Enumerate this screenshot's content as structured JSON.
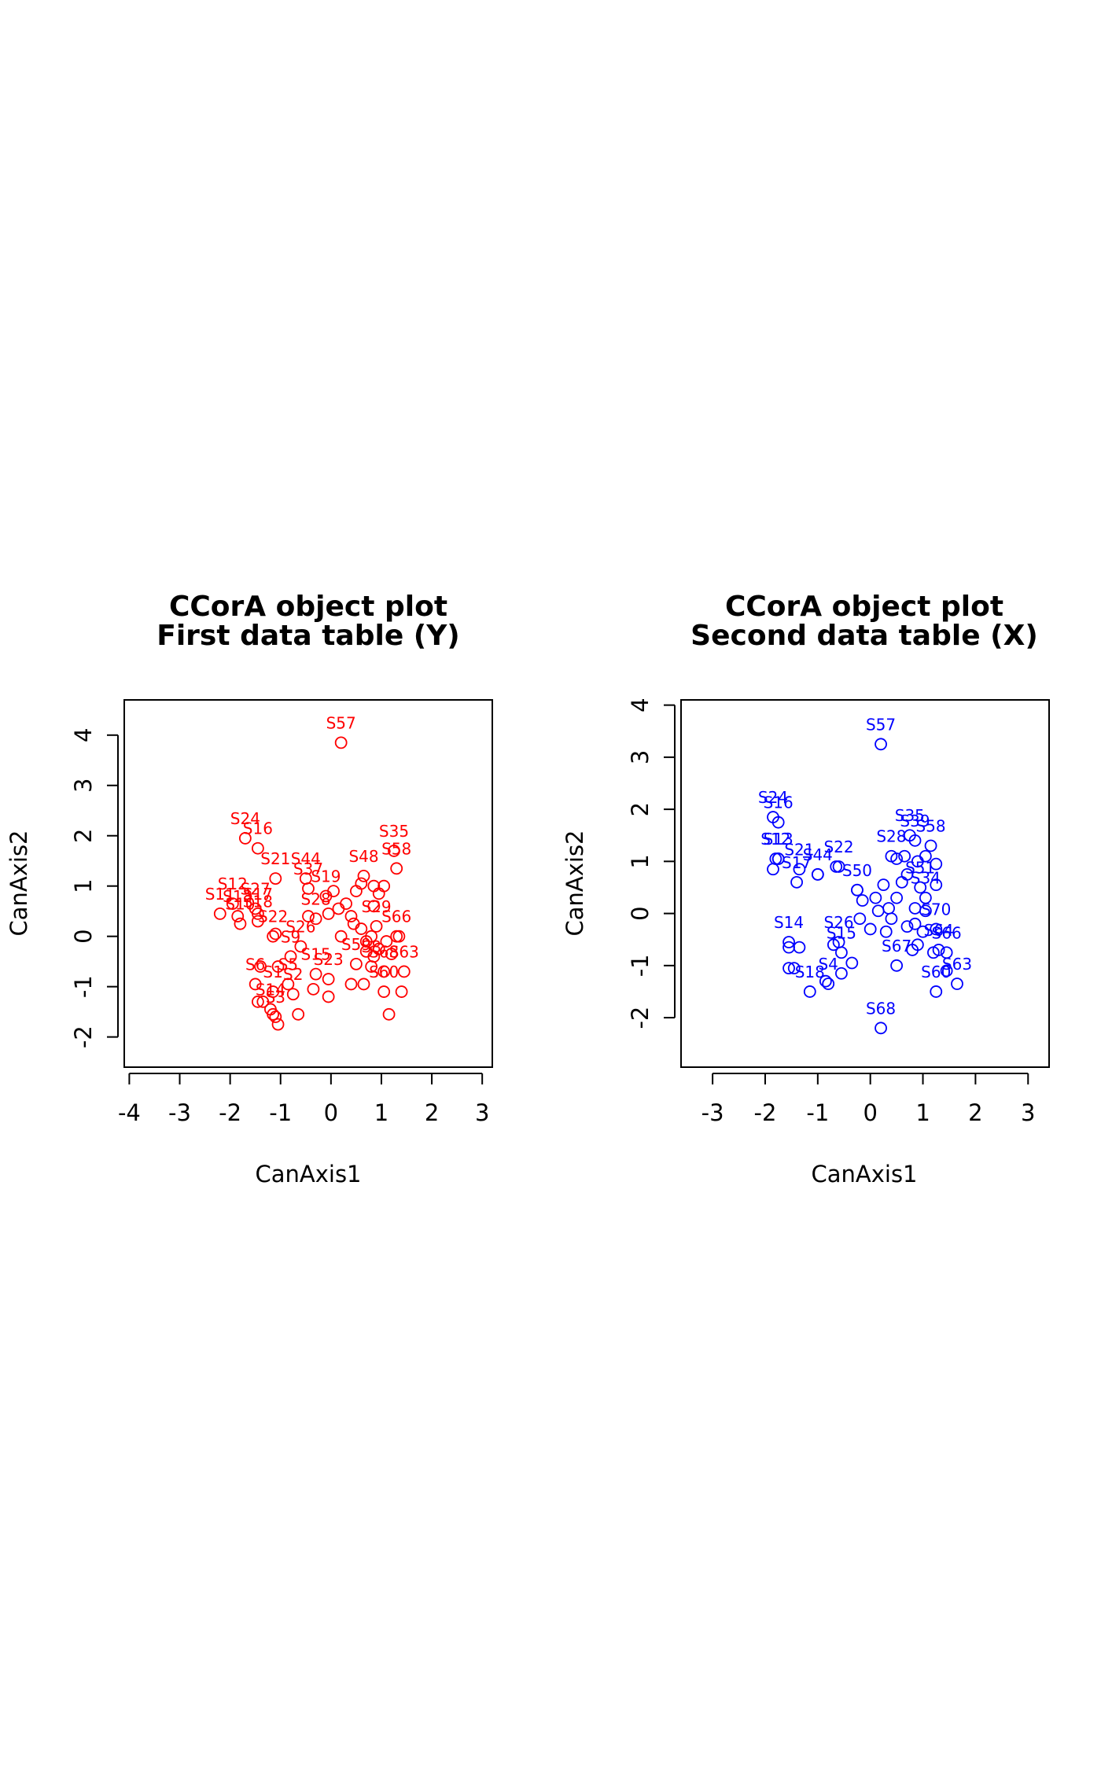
{
  "chart_data": [
    {
      "type": "scatter",
      "title": "CCorA object plot",
      "subtitle": "First data table (Y)",
      "xlabel": "CanAxis1",
      "ylabel": "CanAxis2",
      "xlim": [
        -4.1,
        3.2
      ],
      "ylim": [
        -2.6,
        4.7
      ],
      "xticks": [
        "-4",
        "-3",
        "-2",
        "-1",
        "0",
        "1",
        "2",
        "3"
      ],
      "yticks": [
        "-2",
        "-1",
        "0",
        "1",
        "2",
        "3",
        "4"
      ],
      "color": "#ff0000",
      "points": [
        {
          "label": "S57",
          "x": 0.2,
          "y": 3.85,
          "show": true
        },
        {
          "label": "S24",
          "x": -1.7,
          "y": 1.95,
          "show": true
        },
        {
          "label": "S16",
          "x": -1.45,
          "y": 1.75,
          "show": true
        },
        {
          "label": "S35",
          "x": 1.25,
          "y": 1.7,
          "show": true
        },
        {
          "label": "S58",
          "x": 1.3,
          "y": 1.35,
          "show": true
        },
        {
          "label": "S21",
          "x": -1.1,
          "y": 1.15,
          "show": true
        },
        {
          "label": "S44",
          "x": -0.5,
          "y": 1.15,
          "show": true
        },
        {
          "label": "S37",
          "x": -0.45,
          "y": 0.95,
          "show": true
        },
        {
          "label": "S19",
          "x": -0.1,
          "y": 0.8,
          "show": true
        },
        {
          "label": "S48",
          "x": 0.65,
          "y": 1.2,
          "show": true
        },
        {
          "label": "S12",
          "x": -1.95,
          "y": 0.65,
          "show": true
        },
        {
          "label": "S27",
          "x": -1.5,
          "y": 0.55,
          "show": true
        },
        {
          "label": "S17",
          "x": -1.45,
          "y": 0.45,
          "show": true
        },
        {
          "label": "S11",
          "x": -2.2,
          "y": 0.45,
          "show": true
        },
        {
          "label": "S13",
          "x": -1.85,
          "y": 0.4,
          "show": true
        },
        {
          "label": "S10",
          "x": -1.8,
          "y": 0.25,
          "show": true
        },
        {
          "label": "S18",
          "x": -1.45,
          "y": 0.3,
          "show": true
        },
        {
          "label": "S28",
          "x": -0.3,
          "y": 0.35,
          "show": true
        },
        {
          "label": "S29",
          "x": 0.9,
          "y": 0.2,
          "show": true
        },
        {
          "label": "S66",
          "x": 1.3,
          "y": 0.0,
          "show": true
        },
        {
          "label": "S22",
          "x": -1.15,
          "y": 0.0,
          "show": true
        },
        {
          "label": "S26",
          "x": -0.6,
          "y": -0.2,
          "show": true
        },
        {
          "label": "S9",
          "x": -0.8,
          "y": -0.4,
          "show": true
        },
        {
          "label": "S15",
          "x": -0.3,
          "y": -0.75,
          "show": true
        },
        {
          "label": "S23",
          "x": -0.05,
          "y": -0.85,
          "show": true
        },
        {
          "label": "S59",
          "x": 0.5,
          "y": -0.55,
          "show": true
        },
        {
          "label": "S8",
          "x": 0.8,
          "y": -0.6,
          "show": true
        },
        {
          "label": "S68",
          "x": 1.05,
          "y": -0.7,
          "show": true
        },
        {
          "label": "S63",
          "x": 1.45,
          "y": -0.7,
          "show": true
        },
        {
          "label": "S6",
          "x": -1.5,
          "y": -0.95,
          "show": true
        },
        {
          "label": "S5",
          "x": -0.85,
          "y": -0.95,
          "show": true
        },
        {
          "label": "S1",
          "x": -1.15,
          "y": -1.1,
          "show": true
        },
        {
          "label": "S2",
          "x": -0.75,
          "y": -1.15,
          "show": true
        },
        {
          "label": "S60",
          "x": 1.05,
          "y": -1.1,
          "show": true
        },
        {
          "label": "S14",
          "x": -1.2,
          "y": -1.45,
          "show": true
        },
        {
          "label": "S3",
          "x": -1.1,
          "y": -1.6,
          "show": true
        },
        {
          "label": "",
          "x": -1.05,
          "y": -1.75,
          "show": false
        },
        {
          "label": "",
          "x": -1.15,
          "y": -1.55,
          "show": false
        },
        {
          "label": "",
          "x": -1.35,
          "y": -1.3,
          "show": false
        },
        {
          "label": "",
          "x": -1.45,
          "y": -1.3,
          "show": false
        },
        {
          "label": "",
          "x": -0.65,
          "y": -1.55,
          "show": false
        },
        {
          "label": "",
          "x": -0.35,
          "y": -1.05,
          "show": false
        },
        {
          "label": "",
          "x": -0.05,
          "y": -1.2,
          "show": false
        },
        {
          "label": "",
          "x": 0.4,
          "y": -0.95,
          "show": false
        },
        {
          "label": "",
          "x": 0.65,
          "y": -0.95,
          "show": false
        },
        {
          "label": "",
          "x": -1.4,
          "y": -0.6,
          "show": false
        },
        {
          "label": "",
          "x": -1.05,
          "y": -0.6,
          "show": false
        },
        {
          "label": "",
          "x": -1.1,
          "y": 0.05,
          "show": false
        },
        {
          "label": "",
          "x": 1.15,
          "y": -1.55,
          "show": false
        },
        {
          "label": "",
          "x": 1.4,
          "y": -1.1,
          "show": false
        },
        {
          "label": "",
          "x": 1.2,
          "y": -0.35,
          "show": false
        },
        {
          "label": "",
          "x": 1.1,
          "y": -0.1,
          "show": false
        },
        {
          "label": "",
          "x": 1.35,
          "y": 0.0,
          "show": false
        },
        {
          "label": "",
          "x": 0.7,
          "y": -0.1,
          "show": false
        },
        {
          "label": "",
          "x": 0.7,
          "y": -0.3,
          "show": false
        },
        {
          "label": "",
          "x": 0.85,
          "y": -0.4,
          "show": false
        },
        {
          "label": "",
          "x": 0.95,
          "y": -0.25,
          "show": false
        },
        {
          "label": "",
          "x": 0.8,
          "y": 0.0,
          "show": false
        },
        {
          "label": "",
          "x": 0.6,
          "y": 0.15,
          "show": false
        },
        {
          "label": "",
          "x": 0.4,
          "y": 0.4,
          "show": false
        },
        {
          "label": "",
          "x": 0.3,
          "y": 0.65,
          "show": false
        },
        {
          "label": "",
          "x": 0.15,
          "y": 0.55,
          "show": false
        },
        {
          "label": "",
          "x": 0.5,
          "y": 0.9,
          "show": false
        },
        {
          "label": "",
          "x": 0.6,
          "y": 1.05,
          "show": false
        },
        {
          "label": "",
          "x": 0.85,
          "y": 1.0,
          "show": false
        },
        {
          "label": "",
          "x": 1.05,
          "y": 1.0,
          "show": false
        },
        {
          "label": "",
          "x": 0.95,
          "y": 0.85,
          "show": false
        },
        {
          "label": "",
          "x": 0.85,
          "y": 0.6,
          "show": false
        },
        {
          "label": "",
          "x": 0.05,
          "y": 0.9,
          "show": false
        },
        {
          "label": "",
          "x": -0.05,
          "y": 0.45,
          "show": false
        },
        {
          "label": "",
          "x": 0.2,
          "y": 0.0,
          "show": false
        },
        {
          "label": "",
          "x": 0.45,
          "y": 0.25,
          "show": false
        },
        {
          "label": "",
          "x": -0.45,
          "y": 0.4,
          "show": false
        }
      ]
    },
    {
      "type": "scatter",
      "title": "CCorA object plot",
      "subtitle": "Second data table (X)",
      "xlabel": "CanAxis1",
      "ylabel": "CanAxis2",
      "xlim": [
        -3.6,
        3.4
      ],
      "ylim": [
        -2.95,
        4.1
      ],
      "xticks": [
        "-3",
        "-2",
        "-1",
        "0",
        "1",
        "2",
        "3"
      ],
      "yticks": [
        "-2",
        "-1",
        "0",
        "1",
        "2",
        "3",
        "4"
      ],
      "color": "#0000ff",
      "points": [
        {
          "label": "S57",
          "x": 0.2,
          "y": 3.25,
          "show": true
        },
        {
          "label": "S24",
          "x": -1.85,
          "y": 1.85,
          "show": true
        },
        {
          "label": "S16",
          "x": -1.75,
          "y": 1.75,
          "show": true
        },
        {
          "label": "S35",
          "x": 0.75,
          "y": 1.5,
          "show": true
        },
        {
          "label": "S39",
          "x": 0.85,
          "y": 1.4,
          "show": true
        },
        {
          "label": "S58",
          "x": 1.15,
          "y": 1.3,
          "show": true
        },
        {
          "label": "S22",
          "x": -0.6,
          "y": 0.9,
          "show": true
        },
        {
          "label": "S28",
          "x": 0.4,
          "y": 1.1,
          "show": true
        },
        {
          "label": "S12",
          "x": -1.8,
          "y": 1.05,
          "show": true
        },
        {
          "label": "S13",
          "x": -1.75,
          "y": 1.05,
          "show": true
        },
        {
          "label": "S21",
          "x": -1.35,
          "y": 0.85,
          "show": true
        },
        {
          "label": "S44",
          "x": -1.0,
          "y": 0.75,
          "show": true
        },
        {
          "label": "S17",
          "x": -1.4,
          "y": 0.6,
          "show": true
        },
        {
          "label": "S50",
          "x": -0.25,
          "y": 0.45,
          "show": true
        },
        {
          "label": "S51",
          "x": 0.95,
          "y": 0.5,
          "show": true
        },
        {
          "label": "S34",
          "x": 1.05,
          "y": 0.3,
          "show": true
        },
        {
          "label": "S14",
          "x": -1.55,
          "y": -0.55,
          "show": true
        },
        {
          "label": "S26",
          "x": -0.6,
          "y": -0.55,
          "show": true
        },
        {
          "label": "S15",
          "x": -0.55,
          "y": -0.75,
          "show": true
        },
        {
          "label": "S70",
          "x": 1.25,
          "y": -0.3,
          "show": true
        },
        {
          "label": "S64",
          "x": 1.3,
          "y": -0.7,
          "show": true
        },
        {
          "label": "S66",
          "x": 1.45,
          "y": -0.75,
          "show": true
        },
        {
          "label": "S63",
          "x": 1.65,
          "y": -1.35,
          "show": true
        },
        {
          "label": "S60",
          "x": 1.25,
          "y": -1.5,
          "show": true
        },
        {
          "label": "S68",
          "x": 0.2,
          "y": -2.2,
          "show": true
        },
        {
          "label": "S67",
          "x": 0.5,
          "y": -1.0,
          "show": true
        },
        {
          "label": "S4",
          "x": -0.8,
          "y": -1.35,
          "show": true
        },
        {
          "label": "S18",
          "x": -1.15,
          "y": -1.5,
          "show": true
        },
        {
          "label": "",
          "x": -1.55,
          "y": -0.65,
          "show": false
        },
        {
          "label": "",
          "x": -1.35,
          "y": -0.65,
          "show": false
        },
        {
          "label": "",
          "x": -1.45,
          "y": -1.05,
          "show": false
        },
        {
          "label": "",
          "x": -1.55,
          "y": -1.05,
          "show": false
        },
        {
          "label": "",
          "x": -0.85,
          "y": -1.3,
          "show": false
        },
        {
          "label": "",
          "x": -0.55,
          "y": -1.15,
          "show": false
        },
        {
          "label": "",
          "x": -0.35,
          "y": -0.95,
          "show": false
        },
        {
          "label": "",
          "x": -0.7,
          "y": -0.6,
          "show": false
        },
        {
          "label": "",
          "x": 0.0,
          "y": -0.3,
          "show": false
        },
        {
          "label": "",
          "x": 0.3,
          "y": -0.35,
          "show": false
        },
        {
          "label": "",
          "x": 0.7,
          "y": -0.25,
          "show": false
        },
        {
          "label": "",
          "x": 0.9,
          "y": -0.6,
          "show": false
        },
        {
          "label": "",
          "x": 0.8,
          "y": -0.7,
          "show": false
        },
        {
          "label": "",
          "x": 1.2,
          "y": -0.75,
          "show": false
        },
        {
          "label": "",
          "x": 1.45,
          "y": -1.1,
          "show": false
        },
        {
          "label": "",
          "x": -1.85,
          "y": 0.85,
          "show": false
        },
        {
          "label": "",
          "x": -1.75,
          "y": 1.05,
          "show": false
        },
        {
          "label": "",
          "x": -1.0,
          "y": 0.75,
          "show": false
        },
        {
          "label": "",
          "x": -0.65,
          "y": 0.9,
          "show": false
        },
        {
          "label": "",
          "x": -0.25,
          "y": 0.45,
          "show": false
        },
        {
          "label": "",
          "x": -0.15,
          "y": 0.25,
          "show": false
        },
        {
          "label": "",
          "x": -0.2,
          "y": -0.1,
          "show": false
        },
        {
          "label": "",
          "x": 0.1,
          "y": 0.3,
          "show": false
        },
        {
          "label": "",
          "x": 0.25,
          "y": 0.55,
          "show": false
        },
        {
          "label": "",
          "x": 0.35,
          "y": 0.1,
          "show": false
        },
        {
          "label": "",
          "x": 0.5,
          "y": 0.3,
          "show": false
        },
        {
          "label": "",
          "x": 0.6,
          "y": 0.6,
          "show": false
        },
        {
          "label": "",
          "x": 0.7,
          "y": 0.75,
          "show": false
        },
        {
          "label": "",
          "x": 0.5,
          "y": 1.05,
          "show": false
        },
        {
          "label": "",
          "x": 0.65,
          "y": 1.1,
          "show": false
        },
        {
          "label": "",
          "x": 0.9,
          "y": 1.0,
          "show": false
        },
        {
          "label": "",
          "x": 1.05,
          "y": 1.1,
          "show": false
        },
        {
          "label": "",
          "x": 1.25,
          "y": 0.95,
          "show": false
        },
        {
          "label": "",
          "x": 1.25,
          "y": 0.55,
          "show": false
        },
        {
          "label": "",
          "x": 1.05,
          "y": 0.05,
          "show": false
        },
        {
          "label": "",
          "x": 0.85,
          "y": 0.1,
          "show": false
        },
        {
          "label": "",
          "x": 0.15,
          "y": 0.05,
          "show": false
        },
        {
          "label": "",
          "x": 0.4,
          "y": -0.1,
          "show": false
        },
        {
          "label": "",
          "x": 0.85,
          "y": -0.2,
          "show": false
        },
        {
          "label": "",
          "x": 1.0,
          "y": -0.35,
          "show": false
        }
      ]
    }
  ]
}
